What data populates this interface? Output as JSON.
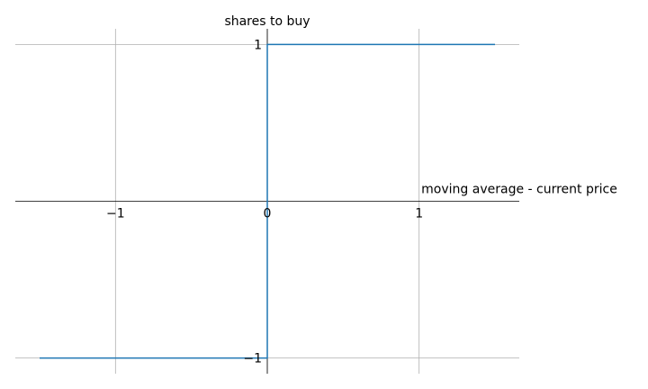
{
  "chart_data": {
    "type": "line",
    "title": "",
    "xlabel": "moving average - current price",
    "ylabel": "shares to buy",
    "xlim": [
      -1.66,
      1.66
    ],
    "ylim": [
      -1.1,
      1.1
    ],
    "grid": true,
    "x_ticks": [
      {
        "value": -1,
        "label": "−1"
      },
      {
        "value": 0,
        "label": "0"
      },
      {
        "value": 1,
        "label": "1"
      }
    ],
    "y_ticks": [
      {
        "value": 1,
        "label": "1"
      },
      {
        "value": -1,
        "label": "−1"
      }
    ],
    "series": [
      {
        "color": "#1f77b4",
        "x": [
          -1.5,
          0,
          0,
          1.5
        ],
        "y": [
          -1,
          -1,
          1,
          1
        ]
      }
    ]
  }
}
